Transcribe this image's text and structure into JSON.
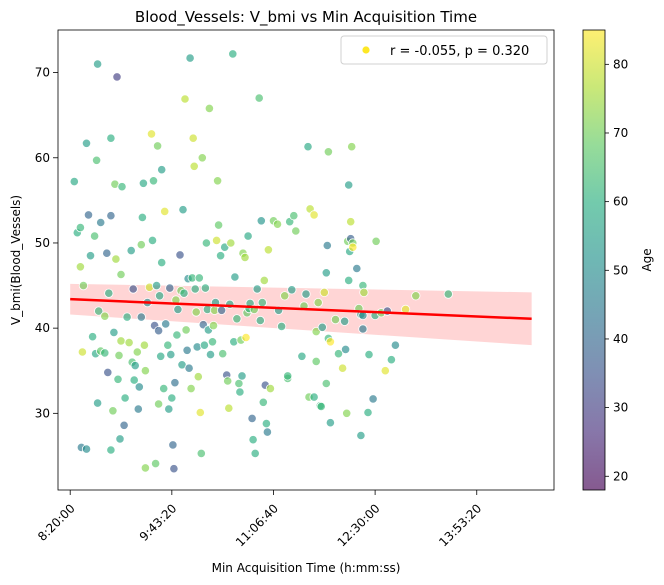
{
  "chart_data": {
    "type": "scatter",
    "title": "Blood_Vessels: V_bmi vs Min Acquisition Time",
    "xlabel": "Min Acquisition Time (h:mm:ss)",
    "ylabel": "V_bmi(Blood_Vessels)",
    "x_ticks": [
      "8:20:00",
      "9:43:20",
      "11:06:40",
      "12:30:00",
      "13:53:20"
    ],
    "x_tick_values": [
      30000,
      35000,
      40000,
      45000,
      50000
    ],
    "xlim": [
      29400,
      53800
    ],
    "y_ticks": [
      30,
      40,
      50,
      60,
      70
    ],
    "ylim": [
      21,
      75
    ],
    "legend": {
      "label": "r = -0.055, p = 0.320",
      "position": "top-right",
      "marker_color": "#fde725"
    },
    "colorbar": {
      "label": "Age",
      "ticks": [
        20,
        30,
        40,
        50,
        60,
        70,
        80
      ],
      "range": [
        18,
        85
      ],
      "colormap": "viridis"
    },
    "regression": {
      "x": [
        30000,
        52700
      ],
      "y": [
        43.4,
        41.1
      ],
      "ci_lower": [
        41.6,
        38.0
      ],
      "ci_upper": [
        45.2,
        44.2
      ],
      "color": "#ff0000",
      "band_color": "#ffb3b3"
    },
    "points": [
      [
        30200,
        57.2,
        58
      ],
      [
        30350,
        51.2,
        60
      ],
      [
        30500,
        47.2,
        75
      ],
      [
        30600,
        37.2,
        80
      ],
      [
        30650,
        45.0,
        70
      ],
      [
        30500,
        51.8,
        62
      ],
      [
        30550,
        26.0,
        45
      ],
      [
        30800,
        61.7,
        55
      ],
      [
        30800,
        25.8,
        50
      ],
      [
        30900,
        53.3,
        40
      ],
      [
        31000,
        48.5,
        55
      ],
      [
        31100,
        39.0,
        60
      ],
      [
        31200,
        50.8,
        65
      ],
      [
        31250,
        37.0,
        58
      ],
      [
        31300,
        59.7,
        65
      ],
      [
        31350,
        71.0,
        55
      ],
      [
        31350,
        31.2,
        55
      ],
      [
        31400,
        42.0,
        62
      ],
      [
        31500,
        37.3,
        68
      ],
      [
        31500,
        52.4,
        45
      ],
      [
        31700,
        37.1,
        62
      ],
      [
        31700,
        41.4,
        72
      ],
      [
        31800,
        48.8,
        40
      ],
      [
        31850,
        34.8,
        35
      ],
      [
        31900,
        44.1,
        60
      ],
      [
        32000,
        53.2,
        40
      ],
      [
        32000,
        62.3,
        60
      ],
      [
        32000,
        25.7,
        60
      ],
      [
        32100,
        30.3,
        70
      ],
      [
        32150,
        39.5,
        55
      ],
      [
        32200,
        56.9,
        70
      ],
      [
        32250,
        48.1,
        75
      ],
      [
        32300,
        69.5,
        30
      ],
      [
        32350,
        34.0,
        62
      ],
      [
        32400,
        36.8,
        70
      ],
      [
        32450,
        27.0,
        55
      ],
      [
        32500,
        46.3,
        70
      ],
      [
        32500,
        38.5,
        75
      ],
      [
        32550,
        56.6,
        62
      ],
      [
        32650,
        28.6,
        40
      ],
      [
        32700,
        31.8,
        60
      ],
      [
        32800,
        41.3,
        60
      ],
      [
        32900,
        38.3,
        75
      ],
      [
        33000,
        49.1,
        55
      ],
      [
        33050,
        36.0,
        65
      ],
      [
        33100,
        44.6,
        35
      ],
      [
        33150,
        33.9,
        60
      ],
      [
        33200,
        35.6,
        55
      ],
      [
        33300,
        37.2,
        72
      ],
      [
        33350,
        30.5,
        45
      ],
      [
        33400,
        33.1,
        50
      ],
      [
        33500,
        41.3,
        45
      ],
      [
        33500,
        49.8,
        70
      ],
      [
        33550,
        53.0,
        60
      ],
      [
        33600,
        57.0,
        58
      ],
      [
        33650,
        38.0,
        75
      ],
      [
        33700,
        35.0,
        72
      ],
      [
        33700,
        23.6,
        72
      ],
      [
        33800,
        43.0,
        50
      ],
      [
        33900,
        44.8,
        80
      ],
      [
        34000,
        62.8,
        82
      ],
      [
        34050,
        50.3,
        60
      ],
      [
        34100,
        57.3,
        62
      ],
      [
        34150,
        40.3,
        35
      ],
      [
        34200,
        24.1,
        68
      ],
      [
        34250,
        45.0,
        55
      ],
      [
        34300,
        61.4,
        70
      ],
      [
        34350,
        39.7,
        38
      ],
      [
        34350,
        31.1,
        70
      ],
      [
        34400,
        43.8,
        58
      ],
      [
        34450,
        36.7,
        58
      ],
      [
        34500,
        58.6,
        55
      ],
      [
        34500,
        47.7,
        60
      ],
      [
        34600,
        32.9,
        62
      ],
      [
        34650,
        53.7,
        82
      ],
      [
        34700,
        40.5,
        45
      ],
      [
        34800,
        38.0,
        62
      ],
      [
        34850,
        30.5,
        55
      ],
      [
        34900,
        44.7,
        40
      ],
      [
        34950,
        36.9,
        55
      ],
      [
        35000,
        31.8,
        60
      ],
      [
        35050,
        26.3,
        40
      ],
      [
        35100,
        23.5,
        35
      ],
      [
        35150,
        33.6,
        42
      ],
      [
        35200,
        43.3,
        72
      ],
      [
        35250,
        39.2,
        62
      ],
      [
        35300,
        42.2,
        55
      ],
      [
        35400,
        48.6,
        35
      ],
      [
        35450,
        44.4,
        70
      ],
      [
        35500,
        35.7,
        55
      ],
      [
        35550,
        53.9,
        55
      ],
      [
        35600,
        44.1,
        60
      ],
      [
        35650,
        66.9,
        78
      ],
      [
        35700,
        39.8,
        70
      ],
      [
        35750,
        37.4,
        45
      ],
      [
        35800,
        45.8,
        50
      ],
      [
        35850,
        35.3,
        45
      ],
      [
        35900,
        71.7,
        55
      ],
      [
        35950,
        32.9,
        72
      ],
      [
        36000,
        45.9,
        62
      ],
      [
        36050,
        62.3,
        80
      ],
      [
        36100,
        59.0,
        78
      ],
      [
        36150,
        44.6,
        60
      ],
      [
        36200,
        41.9,
        72
      ],
      [
        36250,
        37.8,
        50
      ],
      [
        36300,
        34.3,
        75
      ],
      [
        36350,
        45.9,
        62
      ],
      [
        36400,
        30.1,
        82
      ],
      [
        36450,
        25.3,
        65
      ],
      [
        36500,
        60.0,
        72
      ],
      [
        36550,
        40.4,
        40
      ],
      [
        36600,
        38.0,
        58
      ],
      [
        36650,
        44.7,
        60
      ],
      [
        36700,
        50.0,
        62
      ],
      [
        36750,
        42.2,
        60
      ],
      [
        36800,
        39.8,
        55
      ],
      [
        36850,
        65.8,
        72
      ],
      [
        36900,
        36.9,
        55
      ],
      [
        37000,
        38.4,
        62
      ],
      [
        37050,
        40.3,
        72
      ],
      [
        37100,
        42.1,
        72
      ],
      [
        37150,
        43.0,
        55
      ],
      [
        37200,
        50.3,
        80
      ],
      [
        37250,
        57.3,
        72
      ],
      [
        37300,
        52.1,
        68
      ],
      [
        37400,
        48.5,
        60
      ],
      [
        37450,
        42.1,
        40
      ],
      [
        37500,
        37.0,
        65
      ],
      [
        37600,
        49.5,
        58
      ],
      [
        37700,
        34.5,
        35
      ],
      [
        37750,
        33.8,
        70
      ],
      [
        37800,
        30.6,
        78
      ],
      [
        37850,
        42.8,
        58
      ],
      [
        37900,
        50.0,
        75
      ],
      [
        38000,
        72.2,
        60
      ],
      [
        38050,
        38.4,
        60
      ],
      [
        38100,
        46.0,
        55
      ],
      [
        38200,
        41.1,
        62
      ],
      [
        38300,
        33.5,
        65
      ],
      [
        38350,
        32.5,
        60
      ],
      [
        38400,
        38.6,
        70
      ],
      [
        38450,
        34.4,
        55
      ],
      [
        38500,
        48.8,
        72
      ],
      [
        38600,
        48.3,
        75
      ],
      [
        38650,
        38.9,
        85
      ],
      [
        38700,
        41.8,
        68
      ],
      [
        38750,
        50.8,
        58
      ],
      [
        38800,
        42.3,
        62
      ],
      [
        38850,
        42.9,
        60
      ],
      [
        38950,
        29.4,
        40
      ],
      [
        39000,
        26.9,
        60
      ],
      [
        39050,
        42.2,
        70
      ],
      [
        39100,
        25.3,
        60
      ],
      [
        39200,
        44.6,
        55
      ],
      [
        39300,
        67.0,
        65
      ],
      [
        39350,
        40.9,
        60
      ],
      [
        39400,
        52.6,
        52
      ],
      [
        39450,
        43.0,
        62
      ],
      [
        39500,
        31.3,
        62
      ],
      [
        39550,
        45.6,
        75
      ],
      [
        39600,
        33.3,
        35
      ],
      [
        39650,
        28.8,
        60
      ],
      [
        39700,
        27.8,
        45
      ],
      [
        39750,
        49.2,
        78
      ],
      [
        39850,
        32.9,
        75
      ],
      [
        40000,
        52.6,
        70
      ],
      [
        40200,
        52.2,
        72
      ],
      [
        40250,
        42.1,
        55
      ],
      [
        40400,
        40.2,
        60
      ],
      [
        40550,
        43.8,
        72
      ],
      [
        40700,
        34.1,
        65
      ],
      [
        40700,
        34.4,
        62
      ],
      [
        40800,
        52.5,
        62
      ],
      [
        40900,
        44.5,
        55
      ],
      [
        41000,
        53.2,
        65
      ],
      [
        41100,
        51.4,
        70
      ],
      [
        41400,
        36.7,
        58
      ],
      [
        41500,
        42.6,
        70
      ],
      [
        41600,
        44.0,
        55
      ],
      [
        41700,
        61.3,
        58
      ],
      [
        41750,
        31.9,
        70
      ],
      [
        41800,
        54.0,
        78
      ],
      [
        42000,
        53.3,
        82
      ],
      [
        42000,
        31.9,
        60
      ],
      [
        42100,
        39.6,
        72
      ],
      [
        42100,
        36.1,
        68
      ],
      [
        42200,
        43.0,
        72
      ],
      [
        42300,
        30.9,
        62
      ],
      [
        42350,
        30.8,
        62
      ],
      [
        42400,
        40.1,
        55
      ],
      [
        42500,
        44.2,
        80
      ],
      [
        42600,
        33.5,
        65
      ],
      [
        42600,
        46.5,
        55
      ],
      [
        42650,
        49.7,
        45
      ],
      [
        42700,
        60.7,
        70
      ],
      [
        42700,
        38.8,
        62
      ],
      [
        42800,
        28.9,
        55
      ],
      [
        42800,
        38.4,
        85
      ],
      [
        43050,
        41.0,
        70
      ],
      [
        43200,
        37.0,
        62
      ],
      [
        43400,
        35.3,
        80
      ],
      [
        43500,
        40.8,
        55
      ],
      [
        43550,
        37.5,
        50
      ],
      [
        43600,
        30.0,
        72
      ],
      [
        43650,
        50.2,
        70
      ],
      [
        43700,
        56.8,
        55
      ],
      [
        43700,
        45.6,
        60
      ],
      [
        43750,
        49.0,
        58
      ],
      [
        43800,
        50.5,
        38
      ],
      [
        43800,
        52.5,
        78
      ],
      [
        43850,
        61.3,
        72
      ],
      [
        43900,
        50.0,
        70
      ],
      [
        43900,
        49.5,
        85
      ],
      [
        44100,
        47.0,
        45
      ],
      [
        44200,
        42.3,
        70
      ],
      [
        44300,
        41.6,
        55
      ],
      [
        44300,
        27.4,
        55
      ],
      [
        44400,
        39.9,
        45
      ],
      [
        44400,
        41.5,
        50
      ],
      [
        44400,
        45.0,
        62
      ],
      [
        44450,
        44.2,
        75
      ],
      [
        44650,
        30.1,
        60
      ],
      [
        44700,
        36.9,
        60
      ],
      [
        44900,
        31.7,
        45
      ],
      [
        45000,
        41.5,
        60
      ],
      [
        45050,
        50.2,
        70
      ],
      [
        45300,
        41.8,
        70
      ],
      [
        45500,
        35.0,
        82
      ],
      [
        45600,
        42.0,
        35
      ],
      [
        45800,
        36.3,
        60
      ],
      [
        46000,
        38.0,
        50
      ],
      [
        46500,
        42.2,
        82
      ],
      [
        47000,
        43.8,
        72
      ],
      [
        48600,
        44.0,
        62
      ]
    ]
  }
}
